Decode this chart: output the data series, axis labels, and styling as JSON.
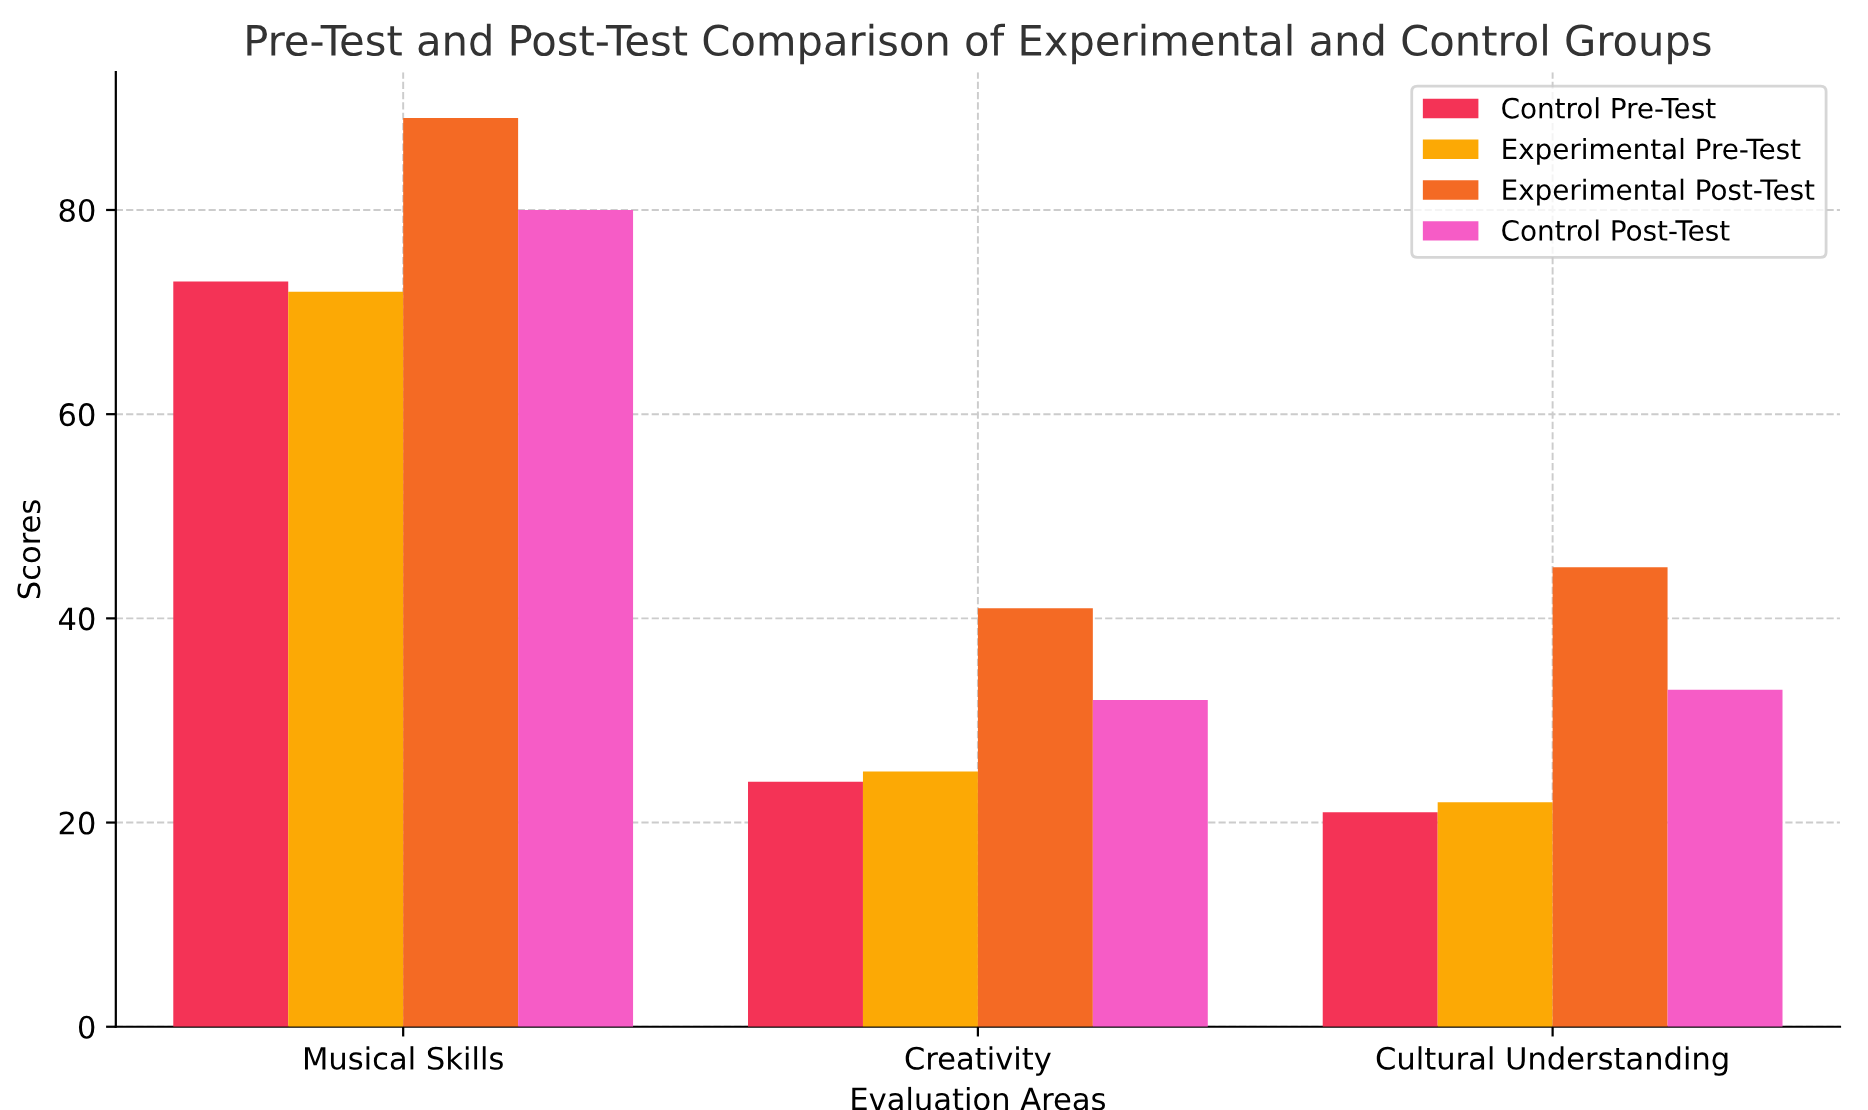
{
  "chart_data": {
    "type": "bar",
    "title": "Pre-Test and Post-Test Comparison of Experimental and Control Groups",
    "xlabel": "Evaluation Areas",
    "ylabel": "Scores",
    "categories": [
      "Musical Skills",
      "Creativity",
      "Cultural Understanding"
    ],
    "series": [
      {
        "name": "Control Pre-Test",
        "color": "#f43356",
        "values": [
          73,
          24,
          21
        ]
      },
      {
        "name": "Experimental Pre-Test",
        "color": "#fca905",
        "values": [
          72,
          25,
          22
        ]
      },
      {
        "name": "Experimental Post-Test",
        "color": "#f46a24",
        "values": [
          89,
          41,
          45
        ]
      },
      {
        "name": "Control Post-Test",
        "color": "#f65cc6",
        "values": [
          80,
          32,
          33
        ]
      }
    ],
    "ylim": [
      0,
      93.5
    ],
    "yticks": [
      0,
      20,
      40,
      60,
      80
    ],
    "grid": true,
    "legend": "top right"
  }
}
